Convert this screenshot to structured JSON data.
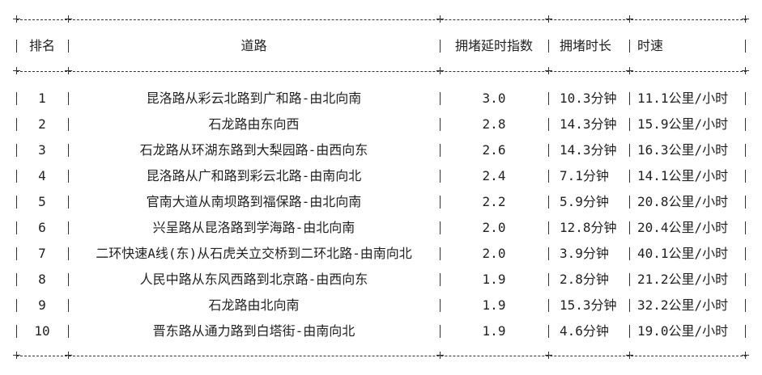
{
  "headers": [
    "排名",
    "道路",
    "拥堵延时指数",
    "拥堵时长",
    "时速"
  ],
  "rows": [
    {
      "rank": "1",
      "road": "昆洛路从彩云北路到广和路-由北向南",
      "index": "3.0",
      "duration": "10.3分钟",
      "speed": "11.1公里/小时"
    },
    {
      "rank": "2",
      "road": "石龙路由东向西",
      "index": "2.8",
      "duration": "14.3分钟",
      "speed": "15.9公里/小时"
    },
    {
      "rank": "3",
      "road": "石龙路从环湖东路到大梨园路-由西向东",
      "index": "2.6",
      "duration": "14.3分钟",
      "speed": "16.3公里/小时"
    },
    {
      "rank": "4",
      "road": "昆洛路从广和路到彩云北路-由南向北",
      "index": "2.4",
      "duration": "7.1分钟",
      "speed": "14.1公里/小时"
    },
    {
      "rank": "5",
      "road": "官南大道从南坝路到福保路-由北向南",
      "index": "2.2",
      "duration": "5.9分钟",
      "speed": "20.8公里/小时"
    },
    {
      "rank": "6",
      "road": "兴呈路从昆洛路到学海路-由北向南",
      "index": "2.0",
      "duration": "12.8分钟",
      "speed": "20.4公里/小时"
    },
    {
      "rank": "7",
      "road": "二环快速A线(东)从石虎关立交桥到二环北路-由南向北",
      "index": "2.0",
      "duration": "3.9分钟",
      "speed": "40.1公里/小时"
    },
    {
      "rank": "8",
      "road": "人民中路从东风西路到北京路-由西向东",
      "index": "1.9",
      "duration": "2.8分钟",
      "speed": "21.2公里/小时"
    },
    {
      "rank": "9",
      "road": "石龙路由北向南",
      "index": "1.9",
      "duration": "15.3分钟",
      "speed": "32.2公里/小时"
    },
    {
      "rank": "10",
      "road": "晋东路从通力路到白塔街-由南向北",
      "index": "1.9",
      "duration": "4.6分钟",
      "speed": "19.0公里/小时"
    }
  ]
}
